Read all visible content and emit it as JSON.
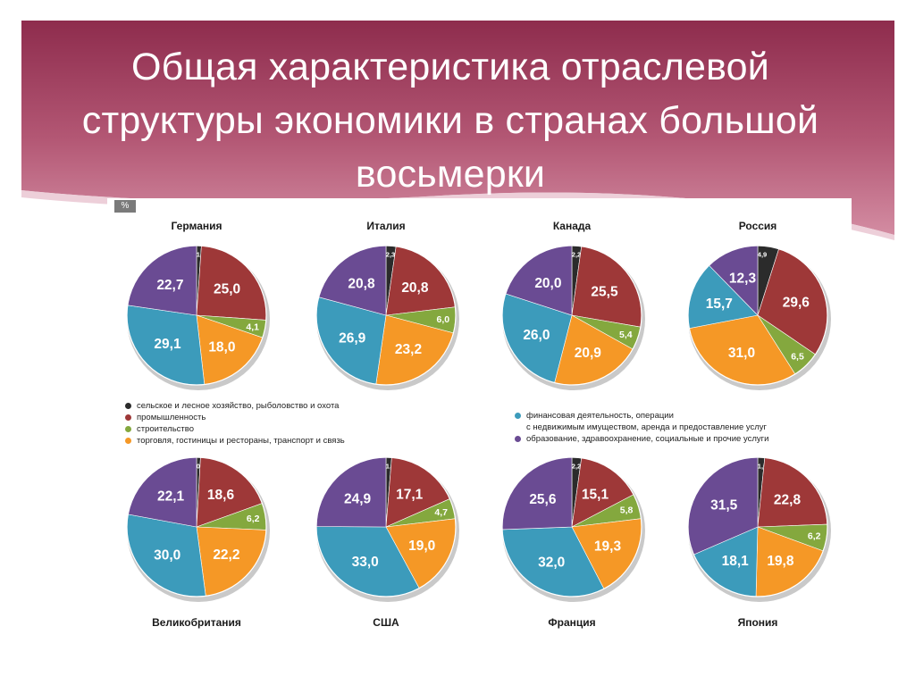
{
  "title": "Общая характеристика отраслевой структуры экономики в странах большой восьмерки",
  "colors": {
    "header_dark": "#8e2c4d",
    "header_light": "#d38ca2",
    "agriculture": "#2b2b2b",
    "industry": "#9e3838",
    "construction": "#84a83e",
    "trade": "#f59826",
    "finance": "#3c9bbb",
    "education": "#6a4b93"
  },
  "chart_data": {
    "type": "pie",
    "unit_label": "%",
    "sector_order": [
      "agriculture",
      "industry",
      "construction",
      "trade",
      "finance",
      "education"
    ],
    "legend_left": [
      {
        "key": "agriculture",
        "label": "сельское и лесное хозяйство, рыболовство и охота"
      },
      {
        "key": "industry",
        "label": "промышленность"
      },
      {
        "key": "construction",
        "label": "строительство"
      },
      {
        "key": "trade",
        "label": "торговля, гостиницы и рестораны, транспорт и связь"
      }
    ],
    "legend_right": [
      {
        "key": "finance",
        "label": "финансовая деятельность, операции\nс недвижимым имуществом, аренда и предоставление услуг"
      },
      {
        "key": "education",
        "label": "образование, здравоохранение, социальные и прочие услуги"
      }
    ],
    "countries": [
      {
        "name": "Германия",
        "values": [
          1.1,
          25.0,
          4.1,
          18.0,
          29.1,
          22.7
        ],
        "labels": [
          "1,1",
          "25,0",
          "4,1",
          "18,0",
          "29,1",
          "22,7"
        ]
      },
      {
        "name": "Италия",
        "values": [
          2.3,
          20.8,
          6.0,
          23.2,
          26.9,
          20.8
        ],
        "labels": [
          "2,3",
          "20,8",
          "6,0",
          "23,2",
          "26,9",
          "20,8"
        ]
      },
      {
        "name": "Канада",
        "values": [
          2.2,
          25.5,
          5.4,
          20.9,
          26.0,
          20.0
        ],
        "labels": [
          "2,2",
          "25,5",
          "5,4",
          "20,9",
          "26,0",
          "20,0"
        ]
      },
      {
        "name": "Россия",
        "values": [
          4.9,
          29.6,
          6.5,
          31.0,
          15.7,
          12.3
        ],
        "labels": [
          "4,9",
          "29,6",
          "6,5",
          "31,0",
          "15,7",
          "12,3"
        ]
      },
      {
        "name": "Великобритания",
        "values": [
          0.9,
          18.6,
          6.2,
          22.2,
          30.0,
          22.1
        ],
        "labels": [
          "0,9",
          "18,6",
          "6,2",
          "22,2",
          "30,0",
          "22,1"
        ]
      },
      {
        "name": "США",
        "values": [
          1.3,
          17.1,
          4.7,
          19.0,
          33.0,
          24.9
        ],
        "labels": [
          "1,3",
          "17,1",
          "4,7",
          "19,0",
          "33,0",
          "24,9"
        ]
      },
      {
        "name": "Франция",
        "values": [
          2.2,
          15.1,
          5.8,
          19.3,
          32.0,
          25.6
        ],
        "labels": [
          "2,2",
          "15,1",
          "5,8",
          "19,3",
          "32,0",
          "25,6"
        ]
      },
      {
        "name": "Япония",
        "values": [
          1.6,
          22.8,
          6.2,
          19.8,
          18.1,
          31.5
        ],
        "labels": [
          "1,6",
          "22,8",
          "6,2",
          "19,8",
          "18,1",
          "31,5"
        ]
      }
    ]
  }
}
